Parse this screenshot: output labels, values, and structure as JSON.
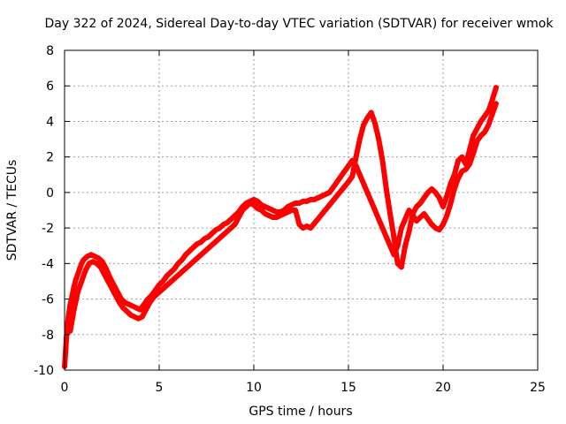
{
  "chart_data": {
    "type": "scatter",
    "title": "Day 322 of 2024, Sidereal Day-to-day VTEC variation (SDTVAR) for receiver wmok",
    "xlabel": "GPS time / hours",
    "ylabel": "SDTVAR / TECUs",
    "xlim": [
      0,
      25
    ],
    "ylim": [
      -10,
      8
    ],
    "xticks": [
      0,
      5,
      10,
      15,
      20,
      25
    ],
    "yticks": [
      -10,
      -8,
      -6,
      -4,
      -2,
      0,
      2,
      4,
      6,
      8
    ],
    "grid": true,
    "marker": "+",
    "series": [
      {
        "name": "SDTVAR",
        "color": "#ff0000",
        "points": [
          [
            0.0,
            -9.8
          ],
          [
            0.05,
            -9.0
          ],
          [
            0.1,
            -8.2
          ],
          [
            0.15,
            -7.5
          ],
          [
            0.2,
            -7.0
          ],
          [
            0.3,
            -6.3
          ],
          [
            0.4,
            -5.8
          ],
          [
            0.5,
            -5.3
          ],
          [
            0.6,
            -4.9
          ],
          [
            0.7,
            -4.6
          ],
          [
            0.8,
            -4.3
          ],
          [
            0.9,
            -4.0
          ],
          [
            1.0,
            -3.8
          ],
          [
            1.2,
            -3.6
          ],
          [
            1.4,
            -3.5
          ],
          [
            1.6,
            -3.6
          ],
          [
            1.8,
            -3.7
          ],
          [
            2.0,
            -3.9
          ],
          [
            2.2,
            -4.3
          ],
          [
            2.4,
            -4.8
          ],
          [
            2.6,
            -5.2
          ],
          [
            2.8,
            -5.6
          ],
          [
            3.0,
            -6.0
          ],
          [
            3.2,
            -6.2
          ],
          [
            3.4,
            -6.3
          ],
          [
            3.6,
            -6.4
          ],
          [
            3.8,
            -6.5
          ],
          [
            4.0,
            -6.6
          ],
          [
            4.2,
            -6.3
          ],
          [
            4.4,
            -6.0
          ],
          [
            4.6,
            -5.8
          ],
          [
            4.8,
            -5.5
          ],
          [
            5.0,
            -5.2
          ],
          [
            5.2,
            -5.0
          ],
          [
            5.4,
            -4.7
          ],
          [
            5.6,
            -4.5
          ],
          [
            5.8,
            -4.3
          ],
          [
            6.0,
            -4.0
          ],
          [
            6.2,
            -3.8
          ],
          [
            6.4,
            -3.5
          ],
          [
            6.6,
            -3.3
          ],
          [
            6.8,
            -3.1
          ],
          [
            7.0,
            -2.9
          ],
          [
            7.2,
            -2.8
          ],
          [
            7.4,
            -2.6
          ],
          [
            7.6,
            -2.5
          ],
          [
            7.8,
            -2.3
          ],
          [
            8.0,
            -2.1
          ],
          [
            8.2,
            -2.0
          ],
          [
            8.4,
            -1.8
          ],
          [
            8.6,
            -1.7
          ],
          [
            8.8,
            -1.5
          ],
          [
            9.0,
            -1.3
          ],
          [
            9.2,
            -1.1
          ],
          [
            9.4,
            -0.8
          ],
          [
            9.6,
            -0.6
          ],
          [
            9.8,
            -0.5
          ],
          [
            10.0,
            -0.4
          ],
          [
            10.2,
            -0.5
          ],
          [
            10.4,
            -0.7
          ],
          [
            10.6,
            -0.8
          ],
          [
            10.8,
            -0.9
          ],
          [
            11.0,
            -1.0
          ],
          [
            11.2,
            -1.1
          ],
          [
            11.4,
            -1.1
          ],
          [
            11.6,
            -1.0
          ],
          [
            11.8,
            -0.8
          ],
          [
            12.0,
            -0.7
          ],
          [
            12.2,
            -0.6
          ],
          [
            12.4,
            -0.6
          ],
          [
            12.6,
            -0.5
          ],
          [
            12.8,
            -0.5
          ],
          [
            13.0,
            -0.4
          ],
          [
            13.2,
            -0.4
          ],
          [
            13.4,
            -0.3
          ],
          [
            13.6,
            -0.2
          ],
          [
            13.8,
            -0.1
          ],
          [
            14.0,
            0.0
          ],
          [
            14.2,
            0.3
          ],
          [
            14.4,
            0.6
          ],
          [
            14.6,
            0.9
          ],
          [
            14.8,
            1.2
          ],
          [
            15.0,
            1.5
          ],
          [
            15.2,
            1.8
          ],
          [
            15.4,
            1.5
          ],
          [
            15.6,
            1.0
          ],
          [
            15.8,
            0.5
          ],
          [
            16.0,
            0.0
          ],
          [
            16.2,
            -0.5
          ],
          [
            16.4,
            -1.0
          ],
          [
            16.6,
            -1.5
          ],
          [
            16.8,
            -2.0
          ],
          [
            17.0,
            -2.5
          ],
          [
            17.2,
            -3.0
          ],
          [
            17.4,
            -3.5
          ],
          [
            17.6,
            -3.0
          ],
          [
            17.8,
            -2.0
          ],
          [
            18.0,
            -1.5
          ],
          [
            18.2,
            -1.0
          ],
          [
            18.4,
            -1.3
          ],
          [
            18.6,
            -1.6
          ],
          [
            18.8,
            -1.4
          ],
          [
            19.0,
            -1.2
          ],
          [
            19.2,
            -1.5
          ],
          [
            19.4,
            -1.8
          ],
          [
            19.6,
            -2.0
          ],
          [
            19.8,
            -2.1
          ],
          [
            20.0,
            -1.8
          ],
          [
            20.2,
            -1.3
          ],
          [
            20.4,
            -0.6
          ],
          [
            20.6,
            0.2
          ],
          [
            20.8,
            0.8
          ],
          [
            21.0,
            1.2
          ],
          [
            21.2,
            1.3
          ],
          [
            21.4,
            1.6
          ],
          [
            21.6,
            2.2
          ],
          [
            21.8,
            2.9
          ],
          [
            22.0,
            3.2
          ],
          [
            22.2,
            3.4
          ],
          [
            22.4,
            3.8
          ],
          [
            22.6,
            4.4
          ],
          [
            22.8,
            5.0
          ]
        ],
        "secondary_points": [
          [
            0.3,
            -7.8
          ],
          [
            0.5,
            -6.6
          ],
          [
            0.7,
            -5.6
          ],
          [
            0.9,
            -5.0
          ],
          [
            1.1,
            -4.4
          ],
          [
            1.3,
            -4.0
          ],
          [
            1.5,
            -3.9
          ],
          [
            1.7,
            -4.0
          ],
          [
            1.9,
            -4.2
          ],
          [
            2.1,
            -4.6
          ],
          [
            2.3,
            -5.0
          ],
          [
            2.5,
            -5.4
          ],
          [
            2.7,
            -5.8
          ],
          [
            2.9,
            -6.2
          ],
          [
            3.1,
            -6.5
          ],
          [
            3.3,
            -6.7
          ],
          [
            3.5,
            -6.9
          ],
          [
            3.7,
            -7.0
          ],
          [
            3.9,
            -7.1
          ],
          [
            4.1,
            -7.0
          ],
          [
            4.3,
            -6.6
          ],
          [
            4.5,
            -6.2
          ],
          [
            4.7,
            -5.9
          ],
          [
            9.0,
            -1.8
          ],
          [
            9.2,
            -1.4
          ],
          [
            9.4,
            -1.0
          ],
          [
            9.6,
            -0.8
          ],
          [
            9.8,
            -0.6
          ],
          [
            10.0,
            -0.7
          ],
          [
            10.2,
            -0.9
          ],
          [
            10.4,
            -1.0
          ],
          [
            10.6,
            -1.2
          ],
          [
            10.8,
            -1.3
          ],
          [
            11.0,
            -1.4
          ],
          [
            11.2,
            -1.4
          ],
          [
            11.4,
            -1.3
          ],
          [
            11.6,
            -1.2
          ],
          [
            11.8,
            -1.1
          ],
          [
            12.0,
            -1.0
          ],
          [
            12.2,
            -1.0
          ],
          [
            12.4,
            -1.8
          ],
          [
            12.6,
            -2.0
          ],
          [
            12.8,
            -1.9
          ],
          [
            13.0,
            -2.0
          ],
          [
            15.0,
            0.6
          ],
          [
            15.2,
            0.9
          ],
          [
            15.4,
            2.0
          ],
          [
            15.6,
            3.0
          ],
          [
            15.8,
            3.8
          ],
          [
            16.0,
            4.2
          ],
          [
            16.2,
            4.5
          ],
          [
            16.4,
            3.9
          ],
          [
            16.6,
            3.0
          ],
          [
            16.8,
            1.8
          ],
          [
            17.0,
            0.2
          ],
          [
            17.2,
            -1.2
          ],
          [
            17.4,
            -2.5
          ],
          [
            17.6,
            -4.0
          ],
          [
            17.8,
            -4.2
          ],
          [
            18.0,
            -3.0
          ],
          [
            18.2,
            -2.2
          ],
          [
            18.4,
            -1.2
          ],
          [
            18.6,
            -0.8
          ],
          [
            18.8,
            -0.6
          ],
          [
            19.0,
            -0.3
          ],
          [
            19.2,
            0.0
          ],
          [
            19.4,
            0.2
          ],
          [
            19.6,
            0.0
          ],
          [
            19.8,
            -0.3
          ],
          [
            20.0,
            -0.8
          ],
          [
            20.2,
            -0.2
          ],
          [
            20.4,
            0.5
          ],
          [
            20.6,
            1.0
          ],
          [
            20.8,
            1.8
          ],
          [
            21.0,
            2.0
          ],
          [
            21.2,
            1.6
          ],
          [
            21.4,
            2.4
          ],
          [
            21.6,
            3.2
          ],
          [
            21.8,
            3.6
          ],
          [
            22.0,
            4.0
          ],
          [
            22.2,
            4.3
          ],
          [
            22.4,
            4.6
          ],
          [
            22.6,
            5.2
          ],
          [
            22.8,
            5.9
          ]
        ]
      }
    ]
  }
}
